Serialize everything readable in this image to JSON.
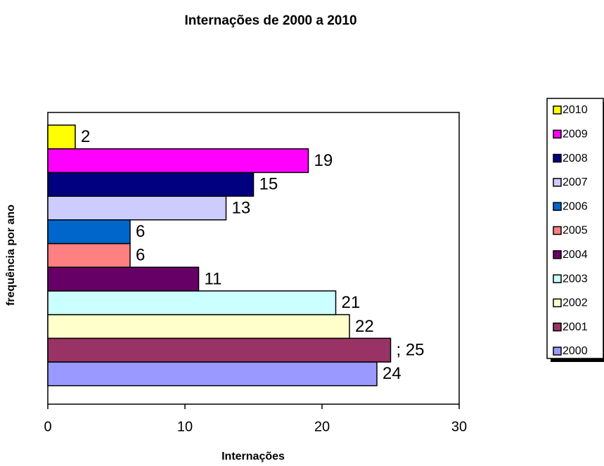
{
  "chart_data": {
    "type": "barh",
    "title": "Internações de 2000 a 2010",
    "xlabel": "Internações",
    "ylabel": "frequência por ano",
    "xlim": [
      0,
      30
    ],
    "xticks": [
      0,
      10,
      20,
      30
    ],
    "grid": false,
    "legend": "right",
    "series": [
      {
        "name": "2000",
        "color": "#9999ff",
        "values": [
          24
        ]
      },
      {
        "name": "2001",
        "color": "#993366",
        "values": [
          25
        ],
        "value_labels": [
          "; 25"
        ]
      },
      {
        "name": "2002",
        "color": "#ffffcc",
        "values": [
          22
        ]
      },
      {
        "name": "2003",
        "color": "#ccffff",
        "values": [
          21
        ]
      },
      {
        "name": "2004",
        "color": "#660066",
        "values": [
          11
        ]
      },
      {
        "name": "2005",
        "color": "#ff8080",
        "values": [
          6
        ]
      },
      {
        "name": "2006",
        "color": "#0066cc",
        "values": [
          6
        ]
      },
      {
        "name": "2007",
        "color": "#ccccff",
        "values": [
          13
        ]
      },
      {
        "name": "2008",
        "color": "#000080",
        "values": [
          15
        ]
      },
      {
        "name": "2009",
        "color": "#ff00ff",
        "values": [
          19
        ]
      },
      {
        "name": "2010",
        "color": "#ffff00",
        "values": [
          2
        ]
      }
    ]
  }
}
